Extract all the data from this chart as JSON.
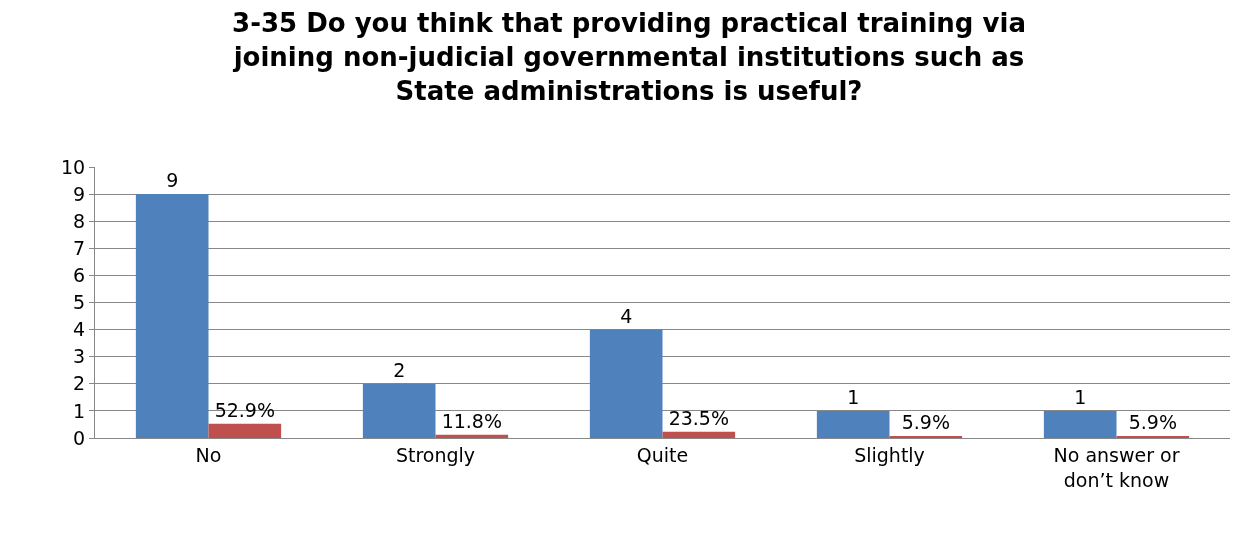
{
  "chart_data": {
    "type": "bar",
    "title": "3-35 Do you think that providing practical training via joining non-judicial governmental institutions such as State administrations is useful?",
    "categories": [
      "No",
      "Strongly",
      "Quite",
      "Slightly",
      "No answer or don’t know"
    ],
    "series": [
      {
        "color": "#4f81bd",
        "values": [
          9,
          2,
          4,
          1,
          1
        ],
        "value_labels": [
          "9",
          "2",
          "4",
          "1",
          "1"
        ]
      },
      {
        "color": "#c0504d",
        "values": [
          0.529,
          0.118,
          0.235,
          0.059,
          0.059
        ],
        "value_labels": [
          "52.9%",
          "11.8%",
          "23.5%",
          "5.9%",
          "5.9%"
        ]
      }
    ],
    "ylim": [
      0,
      10
    ],
    "yticks": [
      0,
      1,
      2,
      3,
      4,
      5,
      6,
      7,
      8,
      9,
      10
    ],
    "grid": "y",
    "legend": false
  }
}
